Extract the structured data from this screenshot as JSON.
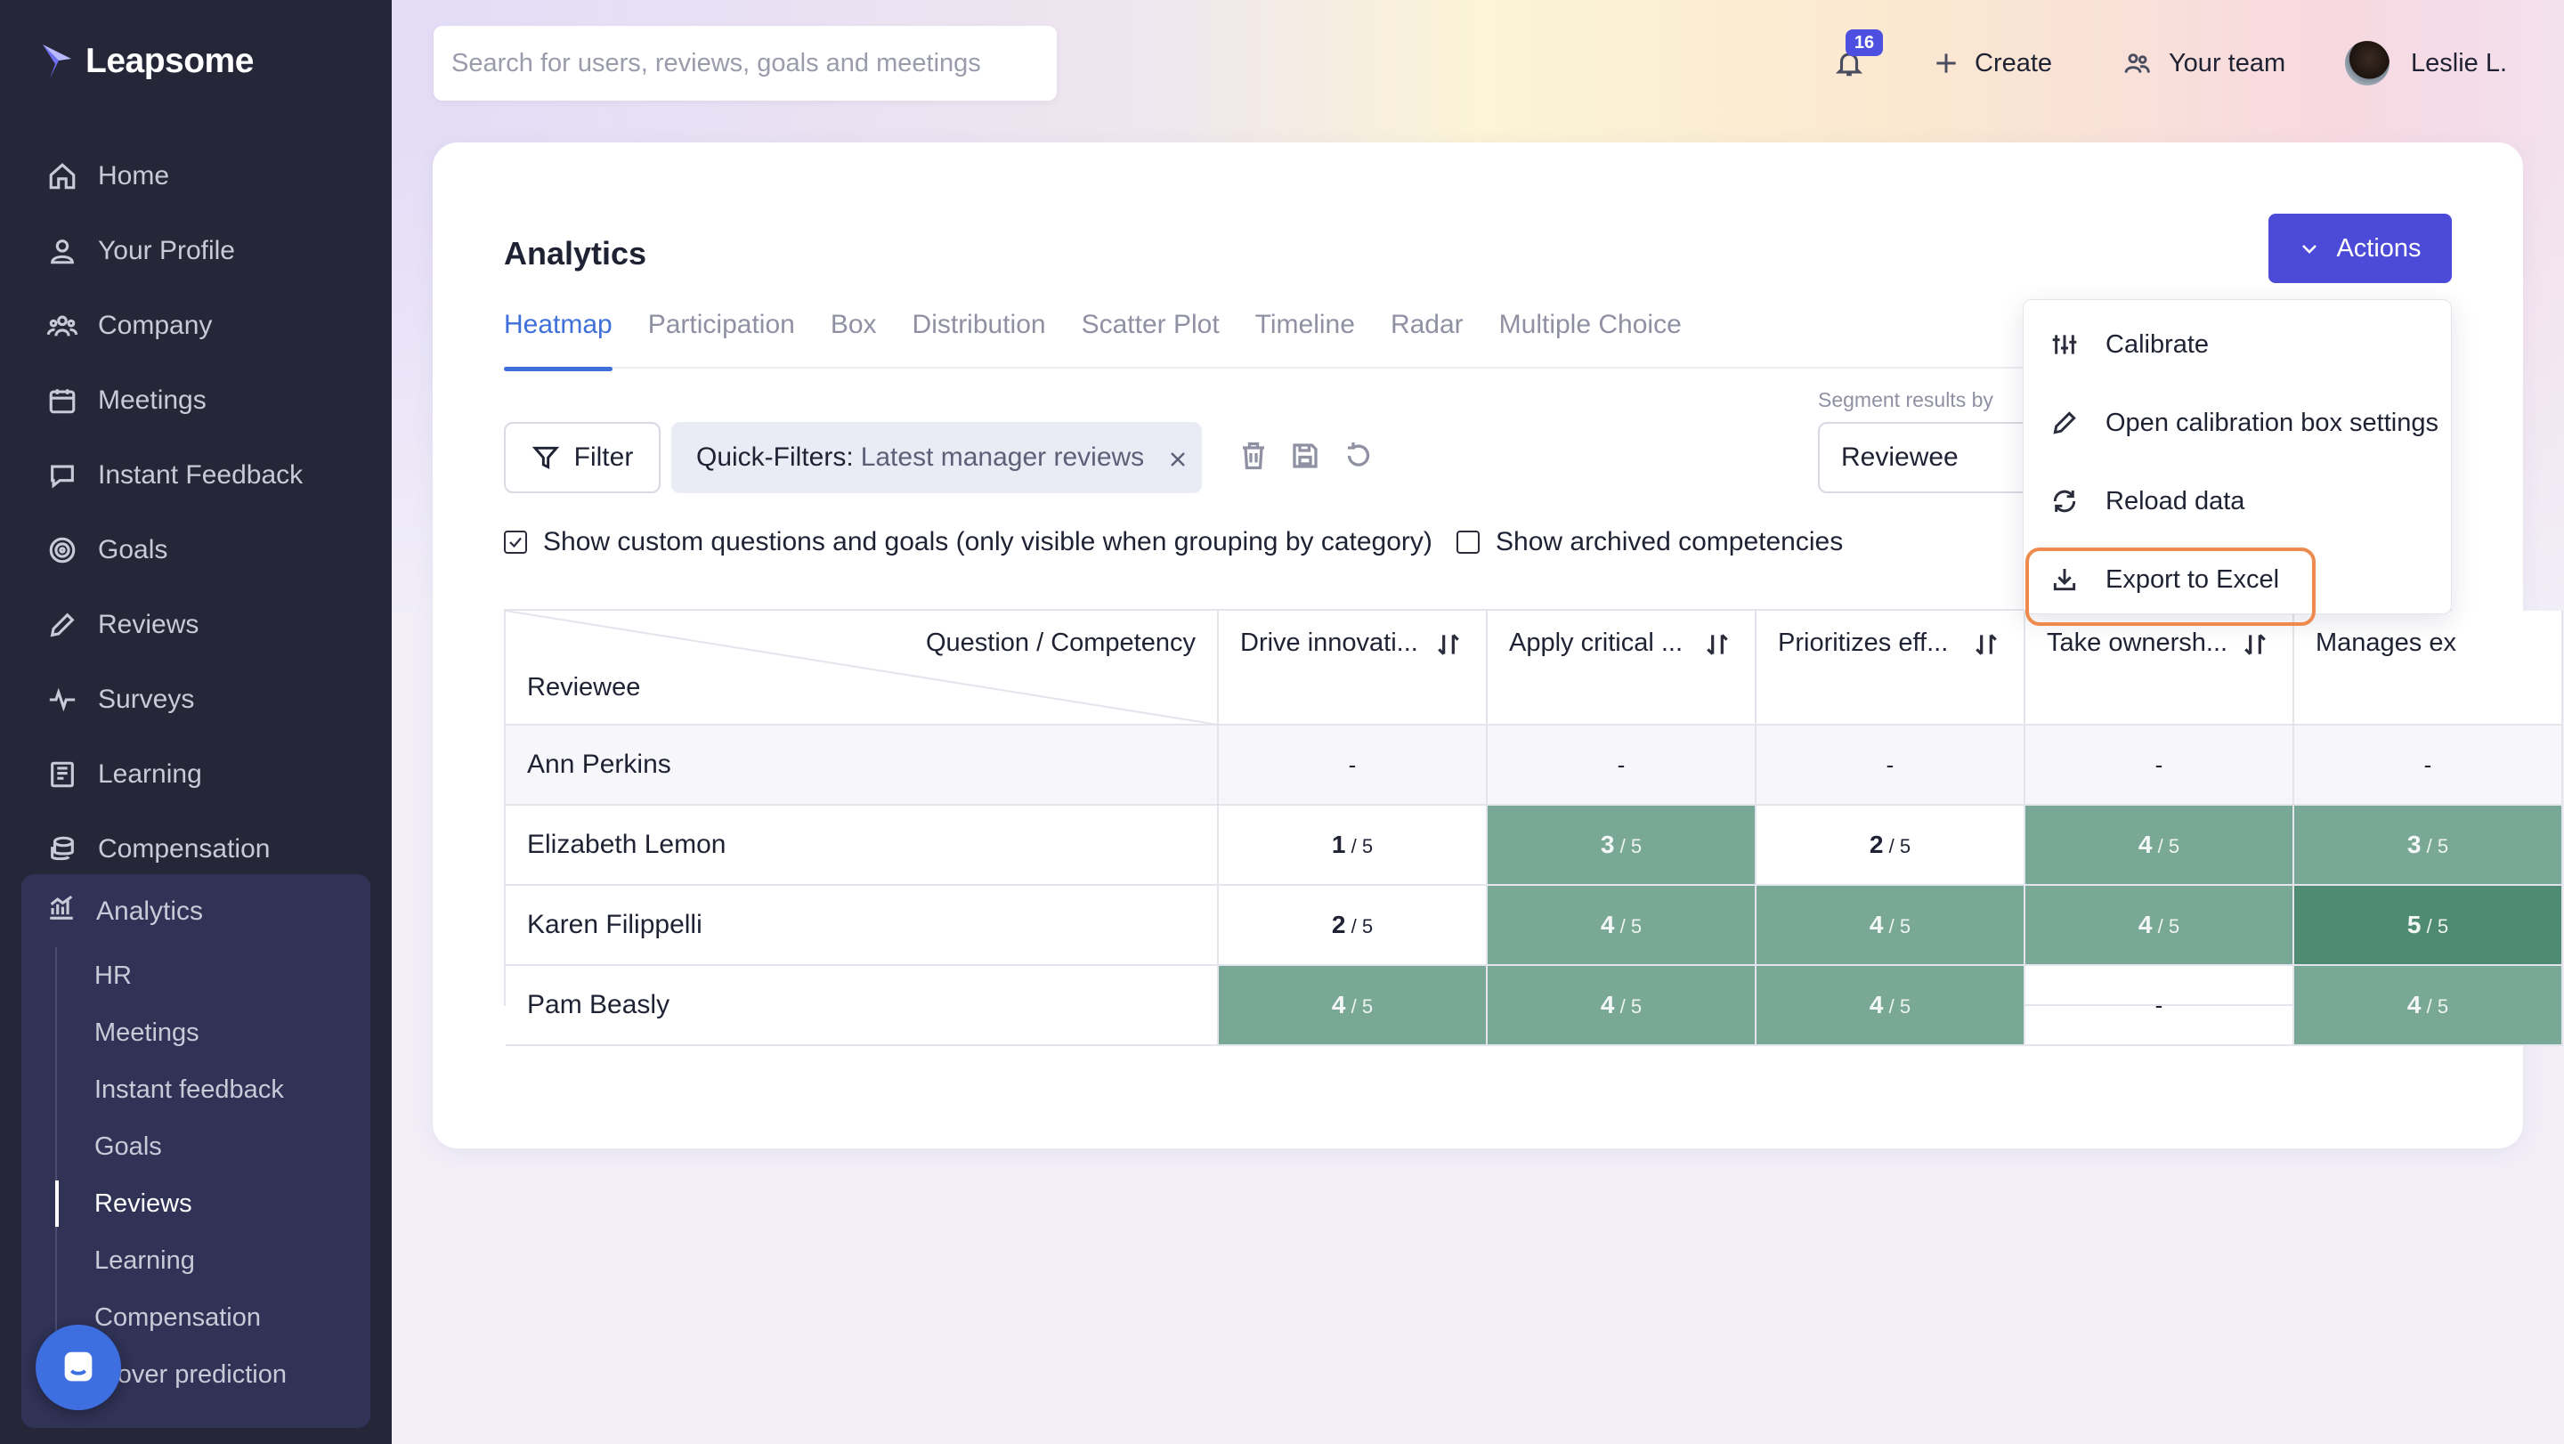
{
  "brand": {
    "name": "Leapsome"
  },
  "sidebar": {
    "items": [
      {
        "label": "Home"
      },
      {
        "label": "Your Profile"
      },
      {
        "label": "Company"
      },
      {
        "label": "Meetings"
      },
      {
        "label": "Instant Feedback"
      },
      {
        "label": "Goals"
      },
      {
        "label": "Reviews"
      },
      {
        "label": "Surveys"
      },
      {
        "label": "Learning"
      },
      {
        "label": "Compensation"
      }
    ],
    "analytics": {
      "label": "Analytics",
      "subitems": [
        {
          "label": "HR"
        },
        {
          "label": "Meetings"
        },
        {
          "label": "Instant feedback"
        },
        {
          "label": "Goals"
        },
        {
          "label": "Reviews",
          "active": true
        },
        {
          "label": "Learning"
        },
        {
          "label": "Compensation"
        },
        {
          "label": "rnover prediction"
        }
      ]
    }
  },
  "header": {
    "search_placeholder": "Search for users, reviews, goals and meetings",
    "notifications_count": "16",
    "create_label": "Create",
    "team_label": "Your team",
    "user_name": "Leslie L."
  },
  "page": {
    "title": "Analytics",
    "actions_label": "Actions",
    "tabs": [
      {
        "label": "Heatmap",
        "active": true
      },
      {
        "label": "Participation"
      },
      {
        "label": "Box"
      },
      {
        "label": "Distribution"
      },
      {
        "label": "Scatter Plot"
      },
      {
        "label": "Timeline"
      },
      {
        "label": "Radar"
      },
      {
        "label": "Multiple Choice"
      }
    ],
    "filter_label": "Filter",
    "quick_filter_key": "Quick-Filters:",
    "quick_filter_value": "Latest manager reviews",
    "segment_label": "Segment results by",
    "segment_value": "Reviewee",
    "show_custom_label": "Show custom questions and goals (only visible when grouping by category)",
    "show_custom_checked": true,
    "show_archived_label": "Show archived competencies",
    "show_archived_checked": false
  },
  "heatmap": {
    "corner_top": "Question / Competency",
    "corner_bottom": "Reviewee",
    "columns": [
      "Drive innovati...",
      "Apply critical ...",
      "Prioritizes eff...",
      "Take ownersh...",
      "Manages ex"
    ],
    "max": "5",
    "rows": [
      {
        "name": "Ann Perkins",
        "values": [
          "-",
          "-",
          "-",
          "-",
          "-"
        ]
      },
      {
        "name": "Elizabeth Lemon",
        "values": [
          "1",
          "3",
          "2",
          "4",
          "3"
        ]
      },
      {
        "name": "Karen Filippelli",
        "values": [
          "2",
          "4",
          "4",
          "4",
          "5"
        ]
      },
      {
        "name": "Pam Beasly",
        "values": [
          "4",
          "4",
          "4",
          "-",
          "4"
        ]
      }
    ]
  },
  "actions_menu": {
    "items": [
      {
        "label": "Calibrate",
        "icon": "calibrate-icon"
      },
      {
        "label": "Open calibration box settings",
        "icon": "pencil-icon"
      },
      {
        "label": "Reload data",
        "icon": "refresh-icon"
      },
      {
        "label": "Export to Excel",
        "icon": "download-icon",
        "highlighted": true
      }
    ]
  },
  "colors": {
    "accent": "#4b4bd8",
    "tab_active": "#3f6fd8",
    "heat_mid": "#7aa896",
    "heat_high": "#4f8a73",
    "highlight": "#ee8a4e"
  }
}
